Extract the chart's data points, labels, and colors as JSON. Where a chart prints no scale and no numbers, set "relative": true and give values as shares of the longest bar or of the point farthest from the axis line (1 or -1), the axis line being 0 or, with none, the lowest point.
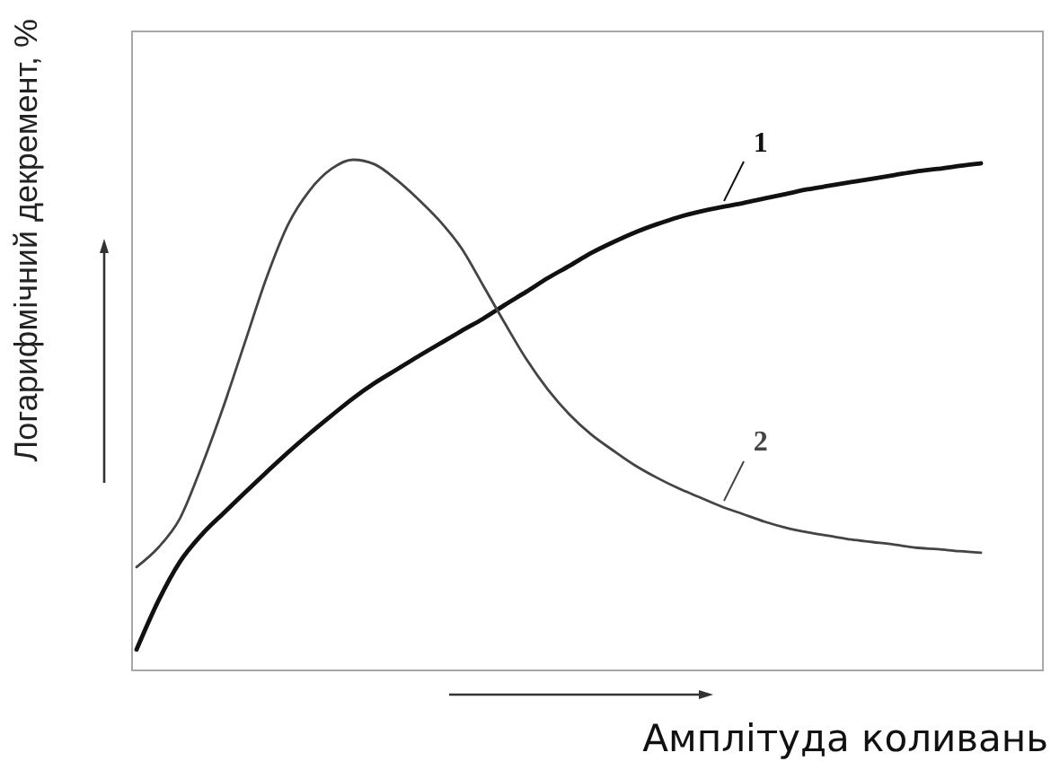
{
  "chart_data": {
    "type": "line",
    "relative": true,
    "xlabel": "Амплітуда коливань",
    "ylabel": "Логарифмічний декремент, %",
    "line_style": "solid",
    "categories": [
      null,
      null,
      null,
      null,
      null,
      null,
      null,
      null,
      null,
      null,
      null,
      null,
      null,
      null,
      null,
      null,
      null,
      null,
      null,
      null,
      null,
      null,
      null,
      null,
      null,
      null,
      null,
      null,
      null,
      null,
      null,
      null,
      null,
      null,
      null,
      null,
      null,
      null,
      null,
      null
    ],
    "series": [
      {
        "name": "1",
        "color": "#111111",
        "values": [
          0.039,
          0.134,
          0.211,
          0.264,
          0.306,
          0.347,
          0.387,
          0.426,
          0.463,
          0.498,
          0.532,
          0.562,
          0.588,
          0.614,
          0.639,
          0.664,
          0.688,
          0.715,
          0.741,
          0.768,
          0.792,
          0.817,
          0.838,
          0.857,
          0.873,
          0.887,
          0.898,
          0.907,
          0.915,
          0.924,
          0.933,
          0.942,
          0.949,
          0.956,
          0.963,
          0.97,
          0.977,
          0.982,
          0.988,
          0.993
        ]
      },
      {
        "name": "2",
        "color": "#444444",
        "values": [
          0.201,
          0.239,
          0.296,
          0.398,
          0.514,
          0.641,
          0.768,
          0.873,
          0.94,
          0.982,
          1,
          0.991,
          0.961,
          0.923,
          0.88,
          0.827,
          0.754,
          0.68,
          0.609,
          0.549,
          0.5,
          0.461,
          0.43,
          0.401,
          0.377,
          0.356,
          0.338,
          0.32,
          0.305,
          0.29,
          0.278,
          0.269,
          0.262,
          0.255,
          0.25,
          0.245,
          0.239,
          0.236,
          0.232,
          0.229
        ]
      }
    ]
  }
}
